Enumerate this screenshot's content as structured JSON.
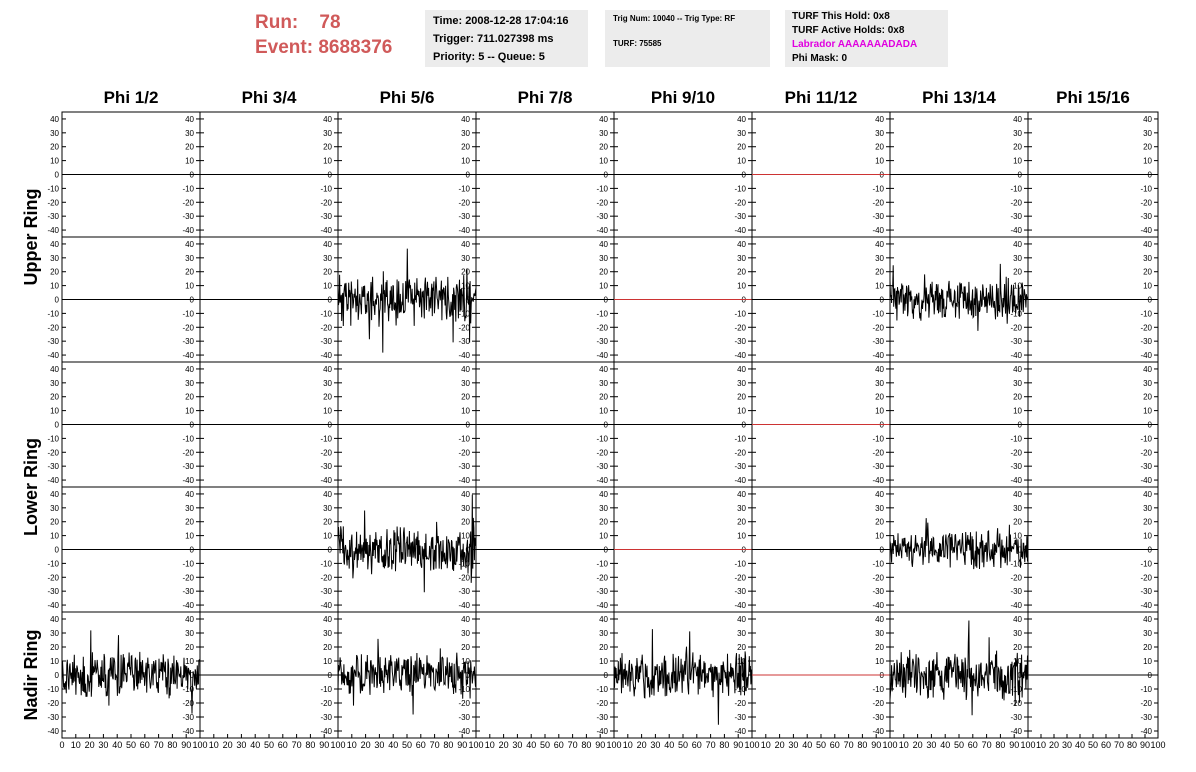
{
  "header": {
    "run_label": "Run:",
    "run_value": "78",
    "event_label": "Event:",
    "event_value": "8688376",
    "time": "Time: 2008-12-28 17:04:16",
    "trigger": "Trigger: 711.027398 ms",
    "priority": "Priority: 5 -- Queue: 5",
    "trig_num": "Trig Num: 10040 -- Trig Type: RF",
    "turf": "TURF: 75585",
    "turf_this_hold": "TURF This Hold: 0x8",
    "turf_active_holds": "TURF Active Holds: 0x8",
    "labrador": "Labrador AAAAAAADADA",
    "phi_mask": "Phi Mask: 0"
  },
  "colors": {
    "run_text": "#d05a5a",
    "labrador_text": "#e000e0",
    "trace": "#000000",
    "masked_trace": "#cc3333",
    "panel_bg": "#ececec"
  },
  "chart_data": {
    "type": "line",
    "columns": [
      "Phi 1/2",
      "Phi 3/4",
      "Phi 5/6",
      "Phi 7/8",
      "Phi 9/10",
      "Phi 11/12",
      "Phi 13/14",
      "Phi 15/16"
    ],
    "ring_labels": [
      "Upper Ring",
      "Lower Ring",
      "Nadir Ring"
    ],
    "y_ticks": [
      "40",
      "30",
      "20",
      "10",
      "0",
      "-10",
      "-20",
      "-30",
      "-40"
    ],
    "x_ticks": [
      "0",
      "10",
      "20",
      "30",
      "40",
      "50",
      "60",
      "70",
      "80",
      "90",
      "100"
    ],
    "xlim": [
      0,
      100
    ],
    "ylim": [
      -45,
      45
    ],
    "grid": false,
    "rows": [
      {
        "ring": "Upper Ring",
        "panels": [
          {
            "kind": "flat"
          },
          {
            "kind": "flat"
          },
          {
            "kind": "flat"
          },
          {
            "kind": "flat"
          },
          {
            "kind": "flat"
          },
          {
            "kind": "flat-red"
          },
          {
            "kind": "flat"
          },
          {
            "kind": "flat"
          }
        ]
      },
      {
        "ring": "Upper Ring",
        "panels": [
          {
            "kind": "flat"
          },
          {
            "kind": "flat"
          },
          {
            "kind": "noise",
            "amp": 14,
            "seed": 11
          },
          {
            "kind": "flat"
          },
          {
            "kind": "flat-red"
          },
          {
            "kind": "flat"
          },
          {
            "kind": "noise",
            "amp": 11,
            "seed": 23
          },
          {
            "kind": "flat"
          }
        ]
      },
      {
        "ring": "Lower Ring",
        "panels": [
          {
            "kind": "flat"
          },
          {
            "kind": "flat"
          },
          {
            "kind": "flat"
          },
          {
            "kind": "flat"
          },
          {
            "kind": "flat"
          },
          {
            "kind": "flat-red"
          },
          {
            "kind": "flat"
          },
          {
            "kind": "flat"
          }
        ]
      },
      {
        "ring": "Lower Ring",
        "panels": [
          {
            "kind": "flat"
          },
          {
            "kind": "flat"
          },
          {
            "kind": "noise",
            "amp": 13,
            "seed": 37
          },
          {
            "kind": "flat"
          },
          {
            "kind": "flat-red"
          },
          {
            "kind": "flat"
          },
          {
            "kind": "noise",
            "amp": 10,
            "seed": 41
          },
          {
            "kind": "flat"
          }
        ]
      },
      {
        "ring": "Nadir Ring",
        "panels": [
          {
            "kind": "noise",
            "amp": 12,
            "seed": 53
          },
          {
            "kind": "flat"
          },
          {
            "kind": "noise",
            "amp": 12,
            "seed": 59
          },
          {
            "kind": "flat"
          },
          {
            "kind": "noise",
            "amp": 12,
            "seed": 67
          },
          {
            "kind": "flat-red"
          },
          {
            "kind": "noise",
            "amp": 13,
            "seed": 71
          },
          {
            "kind": "flat"
          }
        ]
      }
    ]
  }
}
